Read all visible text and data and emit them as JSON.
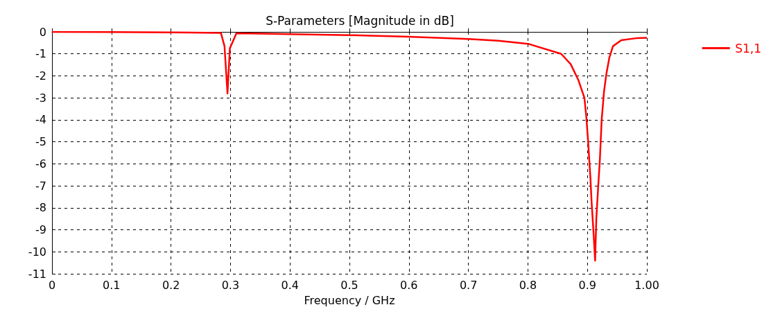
{
  "chart_data": {
    "type": "line",
    "title": "S-Parameters [Magnitude in dB]",
    "xlabel": "Frequency / GHz",
    "xlim": [
      0,
      1
    ],
    "xticks": [
      0,
      0.1,
      0.2,
      0.3,
      0.4,
      0.5,
      0.6,
      0.7,
      0.8,
      0.9,
      {
        "value": 1,
        "label": "1.00"
      }
    ],
    "ylim": [
      -11,
      0
    ],
    "yticks": [
      -11,
      -10,
      -9,
      -8,
      -7,
      -6,
      -5,
      -4,
      -3,
      -2,
      -1,
      0
    ],
    "grid": true,
    "legend": "right",
    "marker": "none",
    "line_style": "solid",
    "series": [
      {
        "name": "S1,1",
        "color": "#ff0000",
        "x": [
          0,
          0.1,
          0.2,
          0.26,
          0.284,
          0.29,
          0.295,
          0.299,
          0.31,
          0.35,
          0.4,
          0.5,
          0.6,
          0.7,
          0.75,
          0.8,
          0.856,
          0.872,
          0.885,
          0.895,
          0.898,
          0.901,
          0.905,
          0.907,
          0.91,
          0.913,
          0.915,
          0.918,
          0.921,
          0.924,
          0.928,
          0.932,
          0.937,
          0.943,
          0.957,
          0.984,
          1
        ],
        "values": [
          0,
          -0.01,
          -0.02,
          -0.04,
          -0.05,
          -0.65,
          -2.8,
          -0.75,
          -0.06,
          -0.08,
          -0.1,
          -0.15,
          -0.22,
          -0.32,
          -0.4,
          -0.54,
          -1.0,
          -1.47,
          -2.2,
          -3.0,
          -3.8,
          -4.9,
          -6.6,
          -7.7,
          -9.0,
          -10.4,
          -8.5,
          -7.1,
          -5.8,
          -4.0,
          -2.7,
          -1.9,
          -1.16,
          -0.65,
          -0.38,
          -0.28,
          -0.27
        ]
      }
    ]
  }
}
